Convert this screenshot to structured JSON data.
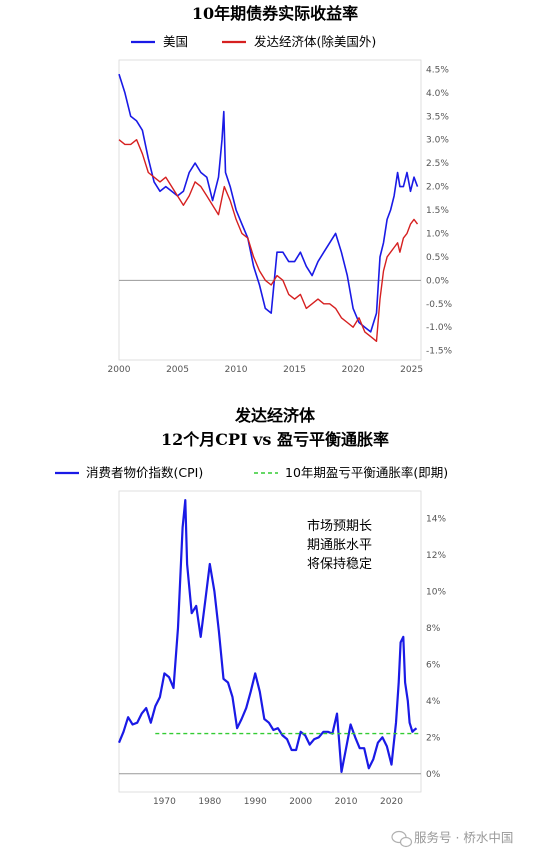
{
  "chart_data": [
    {
      "type": "line",
      "title": "10年期债券实际收益率",
      "xlim": [
        2000,
        2025.8
      ],
      "ylim": [
        -1.7,
        4.7
      ],
      "x_ticks": [
        "2000",
        "2005",
        "2010",
        "2015",
        "2020",
        "2025"
      ],
      "x_tick_values": [
        2000,
        2005,
        2010,
        2015,
        2020,
        2025
      ],
      "y_ticks": [
        "4.5%",
        "4.0%",
        "3.5%",
        "3.0%",
        "2.5%",
        "2.0%",
        "1.5%",
        "1.0%",
        "0.5%",
        "0.0%",
        "-0.5%",
        "-1.0%",
        "-1.5%"
      ],
      "y_tick_values": [
        4.5,
        4.0,
        3.5,
        3.0,
        2.5,
        2.0,
        1.5,
        1.0,
        0.5,
        0.0,
        -0.5,
        -1.0,
        -1.5
      ],
      "zero_line": 0,
      "legend_position": "top",
      "series": [
        {
          "name": "美国",
          "color": "#1a1ae6",
          "x": [
            2000.0,
            2000.5,
            2001.0,
            2001.5,
            2002.0,
            2002.5,
            2003.0,
            2003.5,
            2004.0,
            2004.5,
            2005.0,
            2005.5,
            2006.0,
            2006.5,
            2007.0,
            2007.5,
            2008.0,
            2008.5,
            2008.8,
            2008.95,
            2009.1,
            2009.5,
            2010.0,
            2010.5,
            2011.0,
            2011.5,
            2012.0,
            2012.5,
            2013.0,
            2013.5,
            2014.0,
            2014.5,
            2015.0,
            2015.5,
            2016.0,
            2016.5,
            2017.0,
            2017.5,
            2018.0,
            2018.5,
            2019.0,
            2019.5,
            2020.0,
            2020.5,
            2021.0,
            2021.5,
            2022.0,
            2022.3,
            2022.6,
            2022.9,
            2023.2,
            2023.5,
            2023.8,
            2024.0,
            2024.3,
            2024.6,
            2024.9,
            2025.2,
            2025.5
          ],
          "values": [
            4.4,
            4.0,
            3.5,
            3.4,
            3.2,
            2.6,
            2.1,
            1.9,
            2.0,
            1.9,
            1.8,
            1.9,
            2.3,
            2.5,
            2.3,
            2.2,
            1.7,
            2.2,
            3.0,
            3.6,
            2.3,
            2.0,
            1.5,
            1.2,
            0.9,
            0.3,
            -0.1,
            -0.6,
            -0.7,
            0.6,
            0.6,
            0.4,
            0.4,
            0.6,
            0.3,
            0.1,
            0.4,
            0.6,
            0.8,
            1.0,
            0.6,
            0.1,
            -0.6,
            -0.9,
            -1.0,
            -1.1,
            -0.7,
            0.5,
            0.8,
            1.3,
            1.5,
            1.8,
            2.3,
            2.0,
            2.0,
            2.3,
            1.9,
            2.2,
            2.0
          ]
        },
        {
          "name": "发达经济体(除美国外)",
          "color": "#d62020",
          "x": [
            2000.0,
            2000.5,
            2001.0,
            2001.5,
            2002.0,
            2002.5,
            2003.0,
            2003.5,
            2004.0,
            2004.5,
            2005.0,
            2005.5,
            2006.0,
            2006.5,
            2007.0,
            2007.5,
            2008.0,
            2008.5,
            2009.0,
            2009.5,
            2010.0,
            2010.5,
            2011.0,
            2011.5,
            2012.0,
            2012.5,
            2013.0,
            2013.5,
            2014.0,
            2014.5,
            2015.0,
            2015.5,
            2016.0,
            2016.5,
            2017.0,
            2017.5,
            2018.0,
            2018.5,
            2019.0,
            2019.5,
            2020.0,
            2020.5,
            2021.0,
            2021.5,
            2022.0,
            2022.3,
            2022.6,
            2022.9,
            2023.2,
            2023.5,
            2023.8,
            2024.0,
            2024.3,
            2024.6,
            2024.9,
            2025.2,
            2025.5
          ],
          "values": [
            3.0,
            2.9,
            2.9,
            3.0,
            2.7,
            2.3,
            2.2,
            2.1,
            2.2,
            2.0,
            1.8,
            1.6,
            1.8,
            2.1,
            2.0,
            1.8,
            1.6,
            1.4,
            2.0,
            1.7,
            1.3,
            1.0,
            0.9,
            0.5,
            0.2,
            0.0,
            -0.1,
            0.1,
            0.0,
            -0.3,
            -0.4,
            -0.3,
            -0.6,
            -0.5,
            -0.4,
            -0.5,
            -0.5,
            -0.6,
            -0.8,
            -0.9,
            -1.0,
            -0.8,
            -1.1,
            -1.2,
            -1.3,
            -0.4,
            0.2,
            0.5,
            0.6,
            0.7,
            0.8,
            0.6,
            0.9,
            1.0,
            1.2,
            1.3,
            1.2
          ]
        }
      ]
    },
    {
      "type": "line",
      "title": "发达经济体",
      "subtitle": "12个月CPI vs 盈亏平衡通胀率",
      "xlim": [
        1960,
        2026.5
      ],
      "ylim": [
        -1.0,
        15.5
      ],
      "x_ticks": [
        "1970",
        "1980",
        "1990",
        "2000",
        "2010",
        "2020"
      ],
      "x_tick_values": [
        1970,
        1980,
        1990,
        2000,
        2010,
        2020
      ],
      "y_ticks": [
        "14%",
        "12%",
        "10%",
        "8%",
        "6%",
        "4%",
        "2%",
        "0%"
      ],
      "y_tick_values": [
        14,
        12,
        10,
        8,
        6,
        4,
        2,
        0
      ],
      "zero_line": 0,
      "legend_position": "top",
      "annotation": [
        "市场预期长",
        "期通胀水平",
        "将保持稳定"
      ],
      "series": [
        {
          "name": "消费者物价指数(CPI)",
          "color": "#1a1ae6",
          "x": [
            1960,
            1961,
            1962,
            1963,
            1964,
            1965,
            1966,
            1967,
            1968,
            1969,
            1970,
            1971,
            1972,
            1973,
            1974,
            1974.6,
            1975,
            1976,
            1977,
            1978,
            1979,
            1980,
            1981,
            1982,
            1983,
            1984,
            1985,
            1986,
            1987,
            1988,
            1989,
            1990,
            1991,
            1992,
            1993,
            1994,
            1995,
            1996,
            1997,
            1998,
            1999,
            2000,
            2001,
            2002,
            2003,
            2004,
            2005,
            2006,
            2007,
            2008,
            2009,
            2010,
            2011,
            2012,
            2013,
            2014,
            2015,
            2016,
            2017,
            2018,
            2019,
            2020,
            2021,
            2021.6,
            2022,
            2022.6,
            2023,
            2023.6,
            2024,
            2024.6,
            2025,
            2025.5
          ],
          "values": [
            1.7,
            2.3,
            3.1,
            2.7,
            2.8,
            3.3,
            3.6,
            2.8,
            3.7,
            4.2,
            5.5,
            5.3,
            4.7,
            8.0,
            13.5,
            15.0,
            11.5,
            8.8,
            9.2,
            7.5,
            9.5,
            11.5,
            10.0,
            7.8,
            5.2,
            5.0,
            4.2,
            2.5,
            3.0,
            3.6,
            4.5,
            5.5,
            4.5,
            3.0,
            2.8,
            2.4,
            2.5,
            2.1,
            1.9,
            1.3,
            1.3,
            2.3,
            2.1,
            1.6,
            1.9,
            2.0,
            2.3,
            2.3,
            2.2,
            3.3,
            0.1,
            1.4,
            2.7,
            2.0,
            1.4,
            1.4,
            0.3,
            0.8,
            1.7,
            2.0,
            1.5,
            0.5,
            2.8,
            5.0,
            7.2,
            7.5,
            5.0,
            4.0,
            2.8,
            2.3,
            2.4,
            2.5
          ]
        },
        {
          "name": "10年期盈亏平衡通胀率(即期)",
          "color": "#33cc33",
          "x": [
            1968,
            2026
          ],
          "values": [
            2.2,
            2.2
          ]
        }
      ]
    }
  ],
  "watermark": "服务号 · 桥水中国"
}
